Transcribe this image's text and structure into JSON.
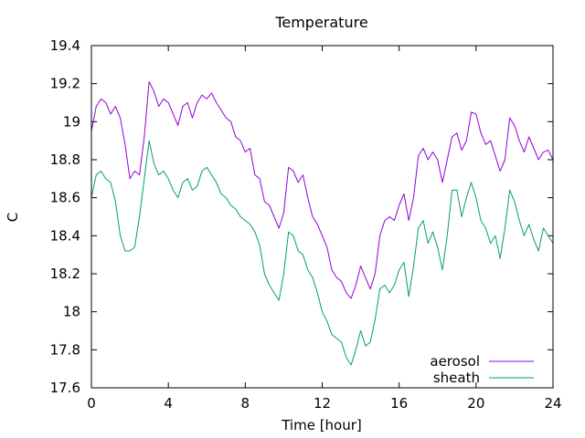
{
  "chart_data": {
    "type": "line",
    "title": "Temperature",
    "xlabel": "Time [hour]",
    "ylabel": "C",
    "xlim": [
      0,
      24
    ],
    "ylim": [
      17.6,
      19.4
    ],
    "xticks": [
      0,
      4,
      8,
      12,
      16,
      20,
      24
    ],
    "xtick_labels": [
      "0",
      "4",
      "8",
      "12",
      "16",
      "20",
      "24"
    ],
    "yticks": [
      17.6,
      17.8,
      18.0,
      18.2,
      18.4,
      18.6,
      18.8,
      19.0,
      19.2,
      19.4
    ],
    "ytick_labels": [
      "17.6",
      "17.8",
      "18",
      "18.2",
      "18.4",
      "18.6",
      "18.8",
      "19",
      "19.2",
      "19.4"
    ],
    "grid": false,
    "legend_position": "bottom-right",
    "series": [
      {
        "name": "aerosol",
        "color": "#9400d3",
        "x": [
          0,
          0.25,
          0.5,
          0.75,
          1.0,
          1.25,
          1.5,
          1.75,
          2.0,
          2.25,
          2.5,
          2.75,
          3.0,
          3.25,
          3.5,
          3.75,
          4.0,
          4.25,
          4.5,
          4.75,
          5.0,
          5.25,
          5.5,
          5.75,
          6.0,
          6.25,
          6.5,
          6.75,
          7.0,
          7.25,
          7.5,
          7.75,
          8.0,
          8.25,
          8.5,
          8.75,
          9.0,
          9.25,
          9.5,
          9.75,
          10.0,
          10.25,
          10.5,
          10.75,
          11.0,
          11.25,
          11.5,
          11.75,
          12.0,
          12.25,
          12.5,
          12.75,
          13.0,
          13.25,
          13.5,
          13.75,
          14.0,
          14.25,
          14.5,
          14.75,
          15.0,
          15.25,
          15.5,
          15.75,
          16.0,
          16.25,
          16.5,
          16.75,
          17.0,
          17.25,
          17.5,
          17.75,
          18.0,
          18.25,
          18.5,
          18.75,
          19.0,
          19.25,
          19.5,
          19.75,
          20.0,
          20.25,
          20.5,
          20.75,
          21.0,
          21.25,
          21.5,
          21.75,
          22.0,
          22.25,
          22.5,
          22.75,
          23.0,
          23.25,
          23.5,
          23.75,
          24.0
        ],
        "y": [
          18.95,
          19.08,
          19.12,
          19.1,
          19.04,
          19.08,
          19.02,
          18.88,
          18.7,
          18.74,
          18.72,
          18.92,
          19.21,
          19.16,
          19.08,
          19.12,
          19.1,
          19.04,
          18.98,
          19.08,
          19.1,
          19.02,
          19.1,
          19.14,
          19.12,
          19.15,
          19.1,
          19.06,
          19.02,
          19.0,
          18.92,
          18.9,
          18.84,
          18.86,
          18.72,
          18.7,
          18.58,
          18.56,
          18.5,
          18.44,
          18.52,
          18.76,
          18.74,
          18.68,
          18.72,
          18.6,
          18.5,
          18.46,
          18.4,
          18.34,
          18.22,
          18.18,
          18.16,
          18.1,
          18.07,
          18.14,
          18.24,
          18.18,
          18.12,
          18.2,
          18.4,
          18.48,
          18.5,
          18.48,
          18.56,
          18.62,
          18.48,
          18.6,
          18.82,
          18.86,
          18.8,
          18.84,
          18.8,
          18.68,
          18.8,
          18.92,
          18.94,
          18.85,
          18.9,
          19.05,
          19.04,
          18.94,
          18.88,
          18.9,
          18.82,
          18.74,
          18.8,
          19.02,
          18.98,
          18.9,
          18.84,
          18.92,
          18.86,
          18.8,
          18.84,
          18.85,
          18.8
        ]
      },
      {
        "name": "sheath",
        "color": "#009e73",
        "x": [
          0,
          0.25,
          0.5,
          0.75,
          1.0,
          1.25,
          1.5,
          1.75,
          2.0,
          2.25,
          2.5,
          2.75,
          3.0,
          3.25,
          3.5,
          3.75,
          4.0,
          4.25,
          4.5,
          4.75,
          5.0,
          5.25,
          5.5,
          5.75,
          6.0,
          6.25,
          6.5,
          6.75,
          7.0,
          7.25,
          7.5,
          7.75,
          8.0,
          8.25,
          8.5,
          8.75,
          9.0,
          9.25,
          9.5,
          9.75,
          10.0,
          10.25,
          10.5,
          10.75,
          11.0,
          11.25,
          11.5,
          11.75,
          12.0,
          12.25,
          12.5,
          12.75,
          13.0,
          13.25,
          13.5,
          13.75,
          14.0,
          14.25,
          14.5,
          14.75,
          15.0,
          15.25,
          15.5,
          15.75,
          16.0,
          16.25,
          16.5,
          16.75,
          17.0,
          17.25,
          17.5,
          17.75,
          18.0,
          18.25,
          18.5,
          18.75,
          19.0,
          19.25,
          19.5,
          19.75,
          20.0,
          20.25,
          20.5,
          20.75,
          21.0,
          21.25,
          21.5,
          21.75,
          22.0,
          22.25,
          22.5,
          22.75,
          23.0,
          23.25,
          23.5,
          23.75,
          24.0
        ],
        "y": [
          18.6,
          18.72,
          18.74,
          18.7,
          18.68,
          18.58,
          18.4,
          18.32,
          18.32,
          18.34,
          18.5,
          18.7,
          18.9,
          18.78,
          18.72,
          18.74,
          18.7,
          18.64,
          18.6,
          18.68,
          18.7,
          18.64,
          18.66,
          18.74,
          18.76,
          18.72,
          18.68,
          18.62,
          18.6,
          18.56,
          18.54,
          18.5,
          18.48,
          18.46,
          18.42,
          18.35,
          18.2,
          18.14,
          18.1,
          18.06,
          18.2,
          18.42,
          18.4,
          18.32,
          18.3,
          18.22,
          18.18,
          18.1,
          18.0,
          17.95,
          17.88,
          17.86,
          17.84,
          17.76,
          17.72,
          17.8,
          17.9,
          17.82,
          17.84,
          17.96,
          18.12,
          18.14,
          18.1,
          18.14,
          18.22,
          18.26,
          18.08,
          18.24,
          18.44,
          18.48,
          18.36,
          18.42,
          18.34,
          18.22,
          18.4,
          18.64,
          18.64,
          18.5,
          18.6,
          18.68,
          18.6,
          18.48,
          18.44,
          18.36,
          18.4,
          18.28,
          18.44,
          18.64,
          18.58,
          18.48,
          18.4,
          18.46,
          18.38,
          18.32,
          18.44,
          18.4,
          18.36
        ]
      }
    ]
  }
}
